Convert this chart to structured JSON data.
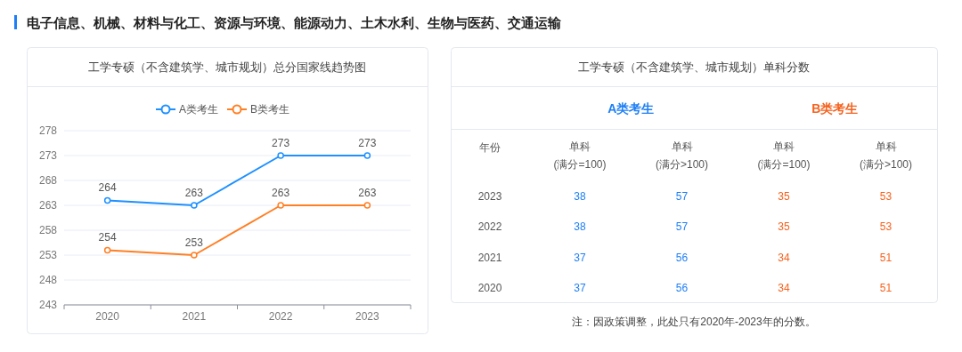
{
  "chart_data": [
    {
      "type": "line",
      "title": "工学专硕（不含建筑学、城市规划）总分国家线趋势图",
      "annotations": [
        "电子信息、机械、材料与化工、资源与环境、能源动力、土木水利、生物与医药、交通运输"
      ],
      "categories": [
        "2020",
        "2021",
        "2022",
        "2023"
      ],
      "series": [
        {
          "name": "A类考生",
          "color": "#1e90ff",
          "values": [
            264,
            263,
            273,
            273
          ]
        },
        {
          "name": "B类考生",
          "color": "#ff7f24",
          "values": [
            254,
            253,
            263,
            263
          ]
        }
      ],
      "ylim": [
        243,
        278
      ],
      "yticks": [
        243,
        248,
        253,
        258,
        263,
        268,
        273,
        278
      ],
      "grid": "y",
      "legend": "top",
      "marker": "circle",
      "line_style": "solid",
      "data_labels": true
    },
    {
      "type": "heatmap",
      "title": "工学专硕（不含建筑学、城市规划）单科分数",
      "ylabel": "年份",
      "colors": [
        "#1e7ff5",
        "#1e7ff5",
        "#f5621e",
        "#f5621e"
      ],
      "categories": [
        "单科\n(满分=100)",
        "单科\n(满分>100)",
        "单科\n(满分=100)",
        "单科\n(满分>100)"
      ],
      "y_categories": [
        "2023",
        "2022",
        "2021",
        "2020"
      ],
      "cells": [
        [
          38,
          57,
          35,
          53
        ],
        [
          38,
          57,
          35,
          53
        ],
        [
          37,
          56,
          34,
          51
        ],
        [
          37,
          56,
          34,
          51
        ]
      ],
      "data_labels": true,
      "annotations": [
        "A类考生",
        "B类考生",
        "注：因政策调整，此处只有2020年-2023年的分数。"
      ]
    }
  ]
}
